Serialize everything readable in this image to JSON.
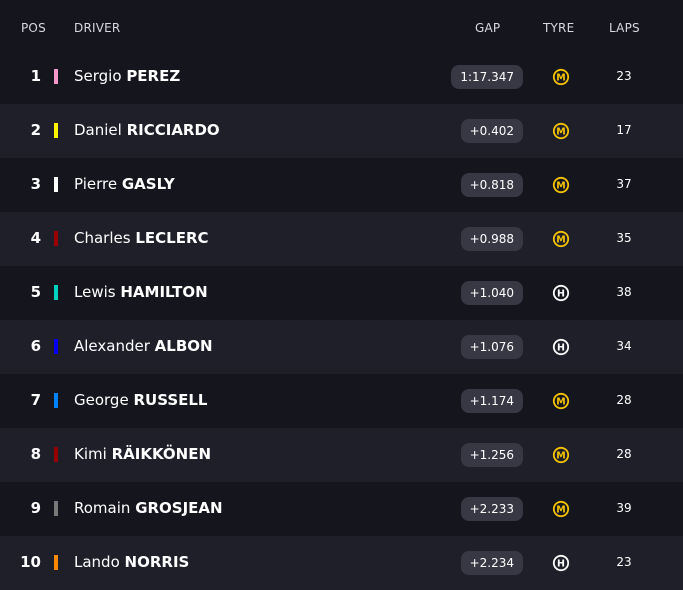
{
  "header": {
    "pos": "POS",
    "driver": "DRIVER",
    "gap": "GAP",
    "tyre": "TYRE",
    "laps": "LAPS"
  },
  "tyre_colors": {
    "M": "#f5c400",
    "H": "#ffffff"
  },
  "rows": [
    {
      "pos": "1",
      "first": "Sergio",
      "last": "PEREZ",
      "team_color": "#f596c8",
      "gap": "1:17.347",
      "tyre": "M",
      "tyre_icon": "medium-tyre-icon",
      "laps": "23"
    },
    {
      "pos": "2",
      "first": "Daniel",
      "last": "RICCIARDO",
      "team_color": "#fff500",
      "gap": "+0.402",
      "tyre": "M",
      "tyre_icon": "medium-tyre-icon",
      "laps": "17"
    },
    {
      "pos": "3",
      "first": "Pierre",
      "last": "GASLY",
      "team_color": "#ffffff",
      "gap": "+0.818",
      "tyre": "M",
      "tyre_icon": "medium-tyre-icon",
      "laps": "37"
    },
    {
      "pos": "4",
      "first": "Charles",
      "last": "LECLERC",
      "team_color": "#9b0000",
      "gap": "+0.988",
      "tyre": "M",
      "tyre_icon": "medium-tyre-icon",
      "laps": "35"
    },
    {
      "pos": "5",
      "first": "Lewis",
      "last": "HAMILTON",
      "team_color": "#00d2be",
      "gap": "+1.040",
      "tyre": "H",
      "tyre_icon": "hard-tyre-icon",
      "laps": "38"
    },
    {
      "pos": "6",
      "first": "Alexander",
      "last": "ALBON",
      "team_color": "#0600ef",
      "gap": "+1.076",
      "tyre": "H",
      "tyre_icon": "hard-tyre-icon",
      "laps": "34"
    },
    {
      "pos": "7",
      "first": "George",
      "last": "RUSSELL",
      "team_color": "#0082fa",
      "gap": "+1.174",
      "tyre": "M",
      "tyre_icon": "medium-tyre-icon",
      "laps": "28"
    },
    {
      "pos": "8",
      "first": "Kimi",
      "last": "RÄIKKÖNEN",
      "team_color": "#960000",
      "gap": "+1.256",
      "tyre": "M",
      "tyre_icon": "medium-tyre-icon",
      "laps": "28"
    },
    {
      "pos": "9",
      "first": "Romain",
      "last": "GROSJEAN",
      "team_color": "#787878",
      "gap": "+2.233",
      "tyre": "M",
      "tyre_icon": "medium-tyre-icon",
      "laps": "39"
    },
    {
      "pos": "10",
      "first": "Lando",
      "last": "NORRIS",
      "team_color": "#ff8700",
      "gap": "+2.234",
      "tyre": "H",
      "tyre_icon": "hard-tyre-icon",
      "laps": "23"
    }
  ]
}
